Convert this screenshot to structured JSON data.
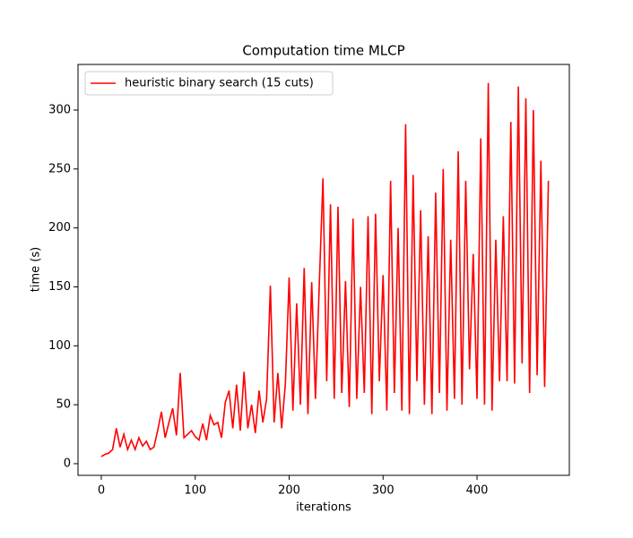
{
  "chart_data": {
    "type": "line",
    "title": "Computation time MLCP",
    "xlabel": "iterations",
    "ylabel": "time (s)",
    "x": [
      0,
      4,
      8,
      12,
      16,
      20,
      24,
      28,
      32,
      36,
      40,
      44,
      48,
      52,
      56,
      60,
      64,
      68,
      72,
      76,
      80,
      84,
      88,
      92,
      96,
      100,
      104,
      108,
      112,
      116,
      120,
      124,
      128,
      132,
      136,
      140,
      144,
      148,
      152,
      156,
      160,
      164,
      168,
      172,
      176,
      180,
      184,
      188,
      192,
      196,
      200,
      204,
      208,
      212,
      216,
      220,
      224,
      228,
      232,
      236,
      240,
      244,
      248,
      252,
      256,
      260,
      264,
      268,
      272,
      276,
      280,
      284,
      288,
      292,
      296,
      300,
      304,
      308,
      312,
      316,
      320,
      324,
      328,
      332,
      336,
      340,
      344,
      348,
      352,
      356,
      360,
      364,
      368,
      372,
      376,
      380,
      384,
      388,
      392,
      396,
      400,
      404,
      408,
      412,
      416,
      420,
      424,
      428,
      432,
      436,
      440,
      444,
      448,
      452,
      456,
      460,
      464,
      468,
      472,
      476
    ],
    "series": [
      {
        "name": "heuristic binary search (15 cuts)",
        "color": "#ff0000",
        "values": [
          6,
          8,
          9,
          12,
          30,
          14,
          25,
          12,
          20,
          12,
          22,
          15,
          19,
          12,
          14,
          28,
          44,
          22,
          35,
          47,
          24,
          77,
          22,
          25,
          28,
          23,
          20,
          34,
          20,
          41,
          33,
          35,
          22,
          52,
          62,
          30,
          67,
          28,
          78,
          30,
          50,
          26,
          62,
          35,
          55,
          151,
          35,
          77,
          30,
          68,
          158,
          45,
          136,
          50,
          166,
          42,
          154,
          55,
          150,
          242,
          70,
          220,
          55,
          218,
          60,
          155,
          48,
          208,
          55,
          150,
          60,
          210,
          42,
          212,
          70,
          160,
          45,
          240,
          60,
          200,
          45,
          288,
          42,
          245,
          70,
          215,
          50,
          193,
          42,
          230,
          60,
          250,
          45,
          190,
          55,
          265,
          50,
          240,
          80,
          178,
          55,
          276,
          50,
          323,
          45,
          190,
          70,
          210,
          70,
          290,
          68,
          320,
          85,
          310,
          60,
          300,
          75,
          257,
          65,
          240
        ]
      }
    ],
    "xlim": [
      -24.8,
      498.3
    ],
    "ylim": [
      -9.9,
      338.7
    ],
    "xticks": [
      0,
      100,
      200,
      300,
      400
    ],
    "yticks": [
      0,
      50,
      100,
      150,
      200,
      250,
      300
    ],
    "legend": "upper left"
  }
}
